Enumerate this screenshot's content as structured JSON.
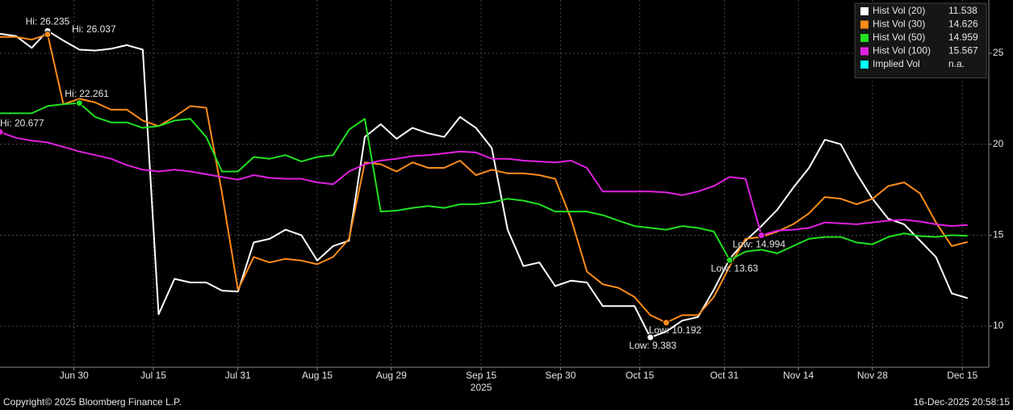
{
  "chart_data": {
    "type": "line",
    "x": [
      "2025-06-16",
      "2025-06-19",
      "2025-06-22",
      "2025-06-25",
      "2025-06-28",
      "2025-07-01",
      "2025-07-04",
      "2025-07-07",
      "2025-07-10",
      "2025-07-13",
      "2025-07-16",
      "2025-07-19",
      "2025-07-22",
      "2025-07-25",
      "2025-07-28",
      "2025-07-31",
      "2025-08-03",
      "2025-08-06",
      "2025-08-09",
      "2025-08-12",
      "2025-08-15",
      "2025-08-18",
      "2025-08-21",
      "2025-08-24",
      "2025-08-27",
      "2025-08-30",
      "2025-09-02",
      "2025-09-05",
      "2025-09-08",
      "2025-09-11",
      "2025-09-14",
      "2025-09-17",
      "2025-09-20",
      "2025-09-23",
      "2025-09-26",
      "2025-09-29",
      "2025-10-02",
      "2025-10-05",
      "2025-10-08",
      "2025-10-11",
      "2025-10-14",
      "2025-10-17",
      "2025-10-20",
      "2025-10-23",
      "2025-10-26",
      "2025-10-29",
      "2025-11-01",
      "2025-11-04",
      "2025-11-07",
      "2025-11-10",
      "2025-11-13",
      "2025-11-16",
      "2025-11-19",
      "2025-11-22",
      "2025-11-25",
      "2025-11-28",
      "2025-12-01",
      "2025-12-04",
      "2025-12-07",
      "2025-12-10",
      "2025-12-13",
      "2025-12-16"
    ],
    "series": [
      {
        "name": "Hist Vol (20)",
        "color": "#ffffff",
        "values": [
          26.07,
          25.95,
          25.3,
          26.235,
          25.7,
          25.2,
          25.15,
          25.25,
          25.45,
          25.2,
          10.65,
          12.6,
          12.4,
          12.4,
          11.95,
          11.9,
          14.6,
          14.8,
          15.3,
          15.0,
          13.6,
          14.4,
          14.7,
          20.4,
          21.1,
          20.3,
          20.9,
          20.6,
          20.4,
          21.5,
          20.9,
          19.8,
          15.3,
          13.3,
          13.5,
          12.2,
          12.5,
          12.4,
          11.1,
          11.1,
          11.1,
          9.383,
          9.7,
          10.3,
          10.5,
          12.0,
          13.7,
          14.7,
          15.5,
          16.4,
          17.6,
          18.7,
          20.25,
          20.0,
          18.4,
          17.0,
          15.9,
          15.6,
          14.7,
          13.8,
          11.8,
          11.538
        ]
      },
      {
        "name": "Hist Vol (30)",
        "color": "#ff8c1a",
        "values": [
          25.9,
          25.9,
          25.75,
          26.037,
          22.2,
          22.5,
          22.3,
          21.9,
          21.9,
          21.3,
          21.0,
          21.5,
          22.1,
          22.0,
          17.3,
          12.0,
          13.8,
          13.5,
          13.7,
          13.6,
          13.4,
          13.8,
          14.8,
          19.0,
          18.9,
          18.5,
          19.0,
          18.7,
          18.7,
          19.1,
          18.3,
          18.6,
          18.4,
          18.4,
          18.3,
          18.1,
          15.9,
          13.0,
          12.3,
          12.1,
          11.6,
          10.6,
          10.192,
          10.6,
          10.6,
          11.6,
          13.3,
          14.8,
          14.9,
          15.2,
          15.6,
          16.2,
          17.1,
          17.0,
          16.7,
          17.0,
          17.7,
          17.9,
          17.3,
          15.7,
          14.4,
          14.626
        ]
      },
      {
        "name": "Hist Vol (50)",
        "color": "#22e022",
        "values": [
          21.7,
          21.7,
          21.7,
          22.1,
          22.2,
          22.261,
          21.5,
          21.2,
          21.2,
          20.9,
          21.0,
          21.3,
          21.4,
          20.4,
          18.5,
          18.5,
          19.3,
          19.2,
          19.4,
          19.05,
          19.3,
          19.4,
          20.8,
          21.4,
          16.3,
          16.35,
          16.5,
          16.6,
          16.5,
          16.7,
          16.7,
          16.8,
          17.0,
          16.9,
          16.7,
          16.3,
          16.3,
          16.3,
          16.1,
          15.8,
          15.5,
          15.4,
          15.3,
          15.5,
          15.4,
          15.2,
          13.63,
          14.1,
          14.2,
          14.0,
          14.4,
          14.8,
          14.9,
          14.9,
          14.6,
          14.5,
          14.9,
          15.1,
          14.95,
          14.9,
          15.0,
          14.959
        ]
      },
      {
        "name": "Hist Vol (100)",
        "color": "#e020e0",
        "values": [
          20.677,
          20.35,
          20.2,
          20.1,
          19.85,
          19.6,
          19.4,
          19.2,
          18.85,
          18.6,
          18.5,
          18.6,
          18.5,
          18.35,
          18.2,
          18.05,
          18.3,
          18.15,
          18.1,
          18.1,
          17.9,
          17.8,
          18.5,
          18.9,
          19.1,
          19.2,
          19.35,
          19.4,
          19.5,
          19.6,
          19.55,
          19.2,
          19.2,
          19.1,
          19.05,
          19.0,
          19.1,
          18.7,
          17.4,
          17.4,
          17.4,
          17.4,
          17.35,
          17.2,
          17.4,
          17.7,
          18.2,
          18.1,
          14.994,
          15.25,
          15.3,
          15.4,
          15.7,
          15.65,
          15.6,
          15.7,
          15.8,
          15.85,
          15.75,
          15.6,
          15.5,
          15.567
        ]
      }
    ],
    "extra_legend": [
      {
        "name": "Implied Vol",
        "color": "#00ffff",
        "value_label": "n.a."
      }
    ],
    "legend": "top-right",
    "annotations": [
      {
        "label": "Hi: 26.235",
        "x": "2025-06-25",
        "value": 26.235,
        "color": "#ffffff"
      },
      {
        "label": "Hi: 26.037",
        "x": "2025-06-25",
        "value": 26.037,
        "color": "#ff8c1a"
      },
      {
        "label": "Hi: 22.261",
        "x": "2025-07-01",
        "value": 22.261,
        "color": "#22e022"
      },
      {
        "label": "Hi: 20.677",
        "x": "2025-06-16",
        "value": 20.677,
        "color": "#e020e0"
      },
      {
        "label": "Low: 9.383",
        "x": "2025-10-17",
        "value": 9.383,
        "color": "#ffffff"
      },
      {
        "label": "Low: 10.192",
        "x": "2025-10-20",
        "value": 10.192,
        "color": "#ff8c1a"
      },
      {
        "label": "Low: 13.63",
        "x": "2025-11-01",
        "value": 13.63,
        "color": "#22e022"
      },
      {
        "label": "Low: 14.994",
        "x": "2025-11-07",
        "value": 14.994,
        "color": "#e020e0"
      }
    ],
    "xlim": [
      "2025-06-16",
      "2025-12-20"
    ],
    "xticks": [
      {
        "value": "2025-06-30",
        "label": "Jun 30"
      },
      {
        "value": "2025-07-15",
        "label": "Jul 15"
      },
      {
        "value": "2025-07-31",
        "label": "Jul 31"
      },
      {
        "value": "2025-08-15",
        "label": "Aug 15"
      },
      {
        "value": "2025-08-29",
        "label": "Aug 29"
      },
      {
        "value": "2025-09-15",
        "label": "Sep 15"
      },
      {
        "value": "2025-09-30",
        "label": "Sep 30"
      },
      {
        "value": "2025-10-15",
        "label": "Oct 15"
      },
      {
        "value": "2025-10-31",
        "label": "Oct 31"
      },
      {
        "value": "2025-11-14",
        "label": "Nov 14"
      },
      {
        "value": "2025-11-28",
        "label": "Nov 28"
      },
      {
        "value": "2025-12-15",
        "label": "Dec 15"
      }
    ],
    "x_year_label": "2025",
    "ylim": [
      7.74,
      27.93
    ],
    "yticks": [
      10,
      15,
      20,
      25
    ],
    "grid": true,
    "copyright": "Copyright© 2025 Bloomberg Finance L.P.",
    "timestamp": "16-Dec-2025 20:58:15"
  }
}
